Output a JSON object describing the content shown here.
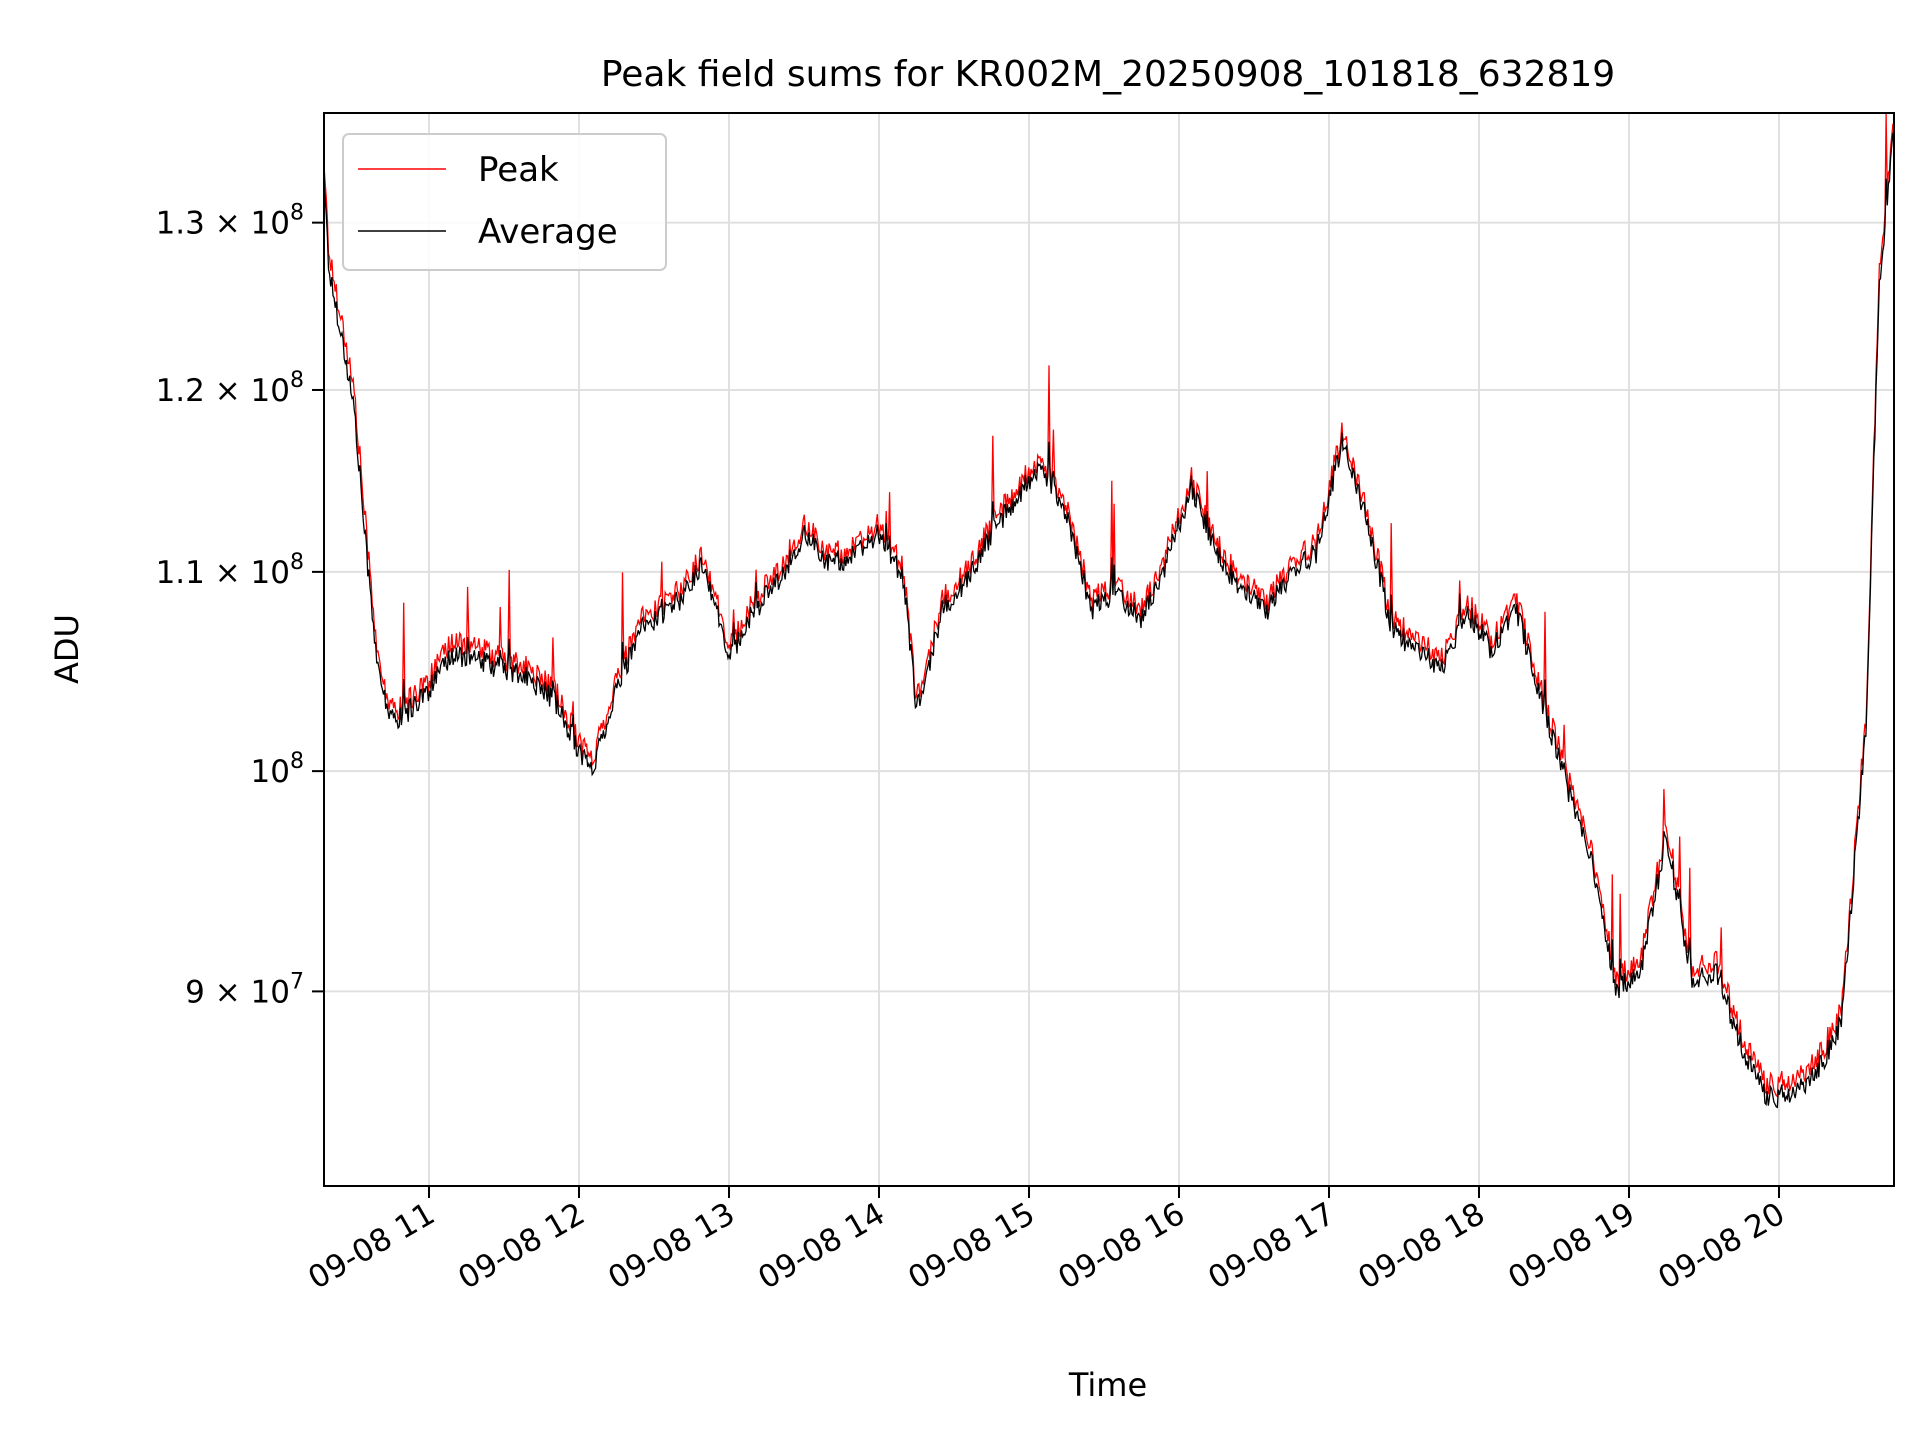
{
  "chart_data": {
    "type": "line",
    "title": "Peak field sums for KR002M_20250908_101818_632819",
    "xlabel": "Time",
    "ylabel": "ADU",
    "yscale": "log",
    "grid": true,
    "legend": "upper left",
    "x_ticks": [
      "09-08 11",
      "09-08 12",
      "09-08 13",
      "09-08 14",
      "09-08 15",
      "09-08 16",
      "09-08 17",
      "09-08 18",
      "09-08 19",
      "09-08 20"
    ],
    "y_ticks": [
      {
        "value": 90000000,
        "mantissa": "9",
        "base": "× 10",
        "exp": "7"
      },
      {
        "value": 100000000,
        "mantissa": "",
        "base": "10",
        "exp": "8"
      },
      {
        "value": 110000000,
        "mantissa": "1.1",
        "base": "× 10",
        "exp": "8"
      },
      {
        "value": 120000000,
        "mantissa": "1.2",
        "base": "× 10",
        "exp": "8"
      },
      {
        "value": 130000000,
        "mantissa": "1.3",
        "base": "× 10",
        "exp": "8"
      }
    ],
    "xlim": [
      "2025-09-08 10:18",
      "2025-09-08 20:46"
    ],
    "ylim": [
      82000000,
      137000000
    ],
    "series": [
      {
        "name": "Peak",
        "color": "#ff0000",
        "x": [
          "2025-09-08 10:18",
          "2025-09-08 10:20",
          "2025-09-08 10:24",
          "2025-09-08 10:30",
          "2025-09-08 10:35",
          "2025-09-08 10:40",
          "2025-09-08 10:45",
          "2025-09-08 10:50",
          "2025-09-08 11:00",
          "2025-09-08 11:10",
          "2025-09-08 11:20",
          "2025-09-08 11:30",
          "2025-09-08 11:40",
          "2025-09-08 11:50",
          "2025-09-08 12:00",
          "2025-09-08 12:05",
          "2025-09-08 12:15",
          "2025-09-08 12:25",
          "2025-09-08 12:40",
          "2025-09-08 12:50",
          "2025-09-08 13:00",
          "2025-09-08 13:10",
          "2025-09-08 13:20",
          "2025-09-08 13:30",
          "2025-09-08 13:40",
          "2025-09-08 13:50",
          "2025-09-08 14:00",
          "2025-09-08 14:10",
          "2025-09-08 14:15",
          "2025-09-08 14:20",
          "2025-09-08 14:25",
          "2025-09-08 14:35",
          "2025-09-08 14:45",
          "2025-09-08 14:55",
          "2025-09-08 15:05",
          "2025-09-08 15:15",
          "2025-09-08 15:25",
          "2025-09-08 15:35",
          "2025-09-08 15:45",
          "2025-09-08 15:55",
          "2025-09-08 16:05",
          "2025-09-08 16:15",
          "2025-09-08 16:25",
          "2025-09-08 16:35",
          "2025-09-08 16:45",
          "2025-09-08 16:55",
          "2025-09-08 17:05",
          "2025-09-08 17:15",
          "2025-09-08 17:25",
          "2025-09-08 17:35",
          "2025-09-08 17:45",
          "2025-09-08 17:55",
          "2025-09-08 18:05",
          "2025-09-08 18:15",
          "2025-09-08 18:25",
          "2025-09-08 18:35",
          "2025-09-08 18:45",
          "2025-09-08 18:55",
          "2025-09-08 19:05",
          "2025-09-08 19:15",
          "2025-09-08 19:25",
          "2025-09-08 19:35",
          "2025-09-08 19:45",
          "2025-09-08 19:55",
          "2025-09-08 20:05",
          "2025-09-08 20:15",
          "2025-09-08 20:25",
          "2025-09-08 20:35",
          "2025-09-08 20:40",
          "2025-09-08 20:46"
        ],
        "values": [
          134000000,
          128000000,
          125000000,
          120000000,
          112000000,
          105000000,
          103000000,
          103200000,
          104500000,
          106500000,
          106000000,
          105500000,
          105000000,
          104000000,
          101500000,
          100500000,
          104500000,
          107500000,
          109000000,
          111000000,
          106000000,
          108500000,
          110000000,
          112500000,
          111000000,
          111200000,
          112500000,
          110000000,
          103500000,
          105500000,
          108500000,
          110000000,
          112500000,
          114500000,
          116200000,
          113500000,
          108500000,
          109500000,
          108000000,
          111000000,
          115000000,
          111500000,
          109500000,
          108500000,
          110500000,
          111500000,
          117500000,
          113500000,
          107500000,
          106500000,
          105500000,
          108500000,
          106500000,
          108500000,
          104000000,
          99800000,
          96500000,
          90500000,
          91500000,
          97500000,
          91000000,
          91300000,
          88200000,
          86000000,
          86200000,
          87000000,
          89200000,
          103000000,
          127000000,
          136500000
        ]
      },
      {
        "name": "Average",
        "color": "#000000",
        "x": [
          "2025-09-08 10:18",
          "2025-09-08 10:20",
          "2025-09-08 10:24",
          "2025-09-08 10:30",
          "2025-09-08 10:35",
          "2025-09-08 10:40",
          "2025-09-08 10:45",
          "2025-09-08 10:50",
          "2025-09-08 11:00",
          "2025-09-08 11:10",
          "2025-09-08 11:20",
          "2025-09-08 11:30",
          "2025-09-08 11:40",
          "2025-09-08 11:50",
          "2025-09-08 12:00",
          "2025-09-08 12:05",
          "2025-09-08 12:15",
          "2025-09-08 12:25",
          "2025-09-08 12:40",
          "2025-09-08 12:50",
          "2025-09-08 13:00",
          "2025-09-08 13:10",
          "2025-09-08 13:20",
          "2025-09-08 13:30",
          "2025-09-08 13:40",
          "2025-09-08 13:50",
          "2025-09-08 14:00",
          "2025-09-08 14:10",
          "2025-09-08 14:15",
          "2025-09-08 14:20",
          "2025-09-08 14:25",
          "2025-09-08 14:35",
          "2025-09-08 14:45",
          "2025-09-08 14:55",
          "2025-09-08 15:05",
          "2025-09-08 15:15",
          "2025-09-08 15:25",
          "2025-09-08 15:35",
          "2025-09-08 15:45",
          "2025-09-08 15:55",
          "2025-09-08 16:05",
          "2025-09-08 16:15",
          "2025-09-08 16:25",
          "2025-09-08 16:35",
          "2025-09-08 16:45",
          "2025-09-08 16:55",
          "2025-09-08 17:05",
          "2025-09-08 17:15",
          "2025-09-08 17:25",
          "2025-09-08 17:35",
          "2025-09-08 17:45",
          "2025-09-08 17:55",
          "2025-09-08 18:05",
          "2025-09-08 18:15",
          "2025-09-08 18:25",
          "2025-09-08 18:35",
          "2025-09-08 18:45",
          "2025-09-08 18:55",
          "2025-09-08 19:05",
          "2025-09-08 19:15",
          "2025-09-08 19:25",
          "2025-09-08 19:35",
          "2025-09-08 19:45",
          "2025-09-08 19:55",
          "2025-09-08 20:05",
          "2025-09-08 20:15",
          "2025-09-08 20:25",
          "2025-09-08 20:35",
          "2025-09-08 20:40",
          "2025-09-08 20:46"
        ],
        "values": [
          133000000,
          127000000,
          124000000,
          119000000,
          111000000,
          104500000,
          102500000,
          102700000,
          104000000,
          105800000,
          105400000,
          105000000,
          104500000,
          103500000,
          101000000,
          100000000,
          104000000,
          107000000,
          108500000,
          110500000,
          105500000,
          108000000,
          109500000,
          112000000,
          110500000,
          110800000,
          112000000,
          109500000,
          103000000,
          105000000,
          108000000,
          109500000,
          112000000,
          114000000,
          115800000,
          113000000,
          108000000,
          109000000,
          107500000,
          110500000,
          114600000,
          111000000,
          109000000,
          108000000,
          110000000,
          111000000,
          117000000,
          113000000,
          107000000,
          106000000,
          105000000,
          108000000,
          106000000,
          108000000,
          103500000,
          99300000,
          96000000,
          90000000,
          91000000,
          97000000,
          90500000,
          90800000,
          87700000,
          85500000,
          85700000,
          86500000,
          88700000,
          102500000,
          126000000,
          136000000
        ]
      }
    ]
  }
}
